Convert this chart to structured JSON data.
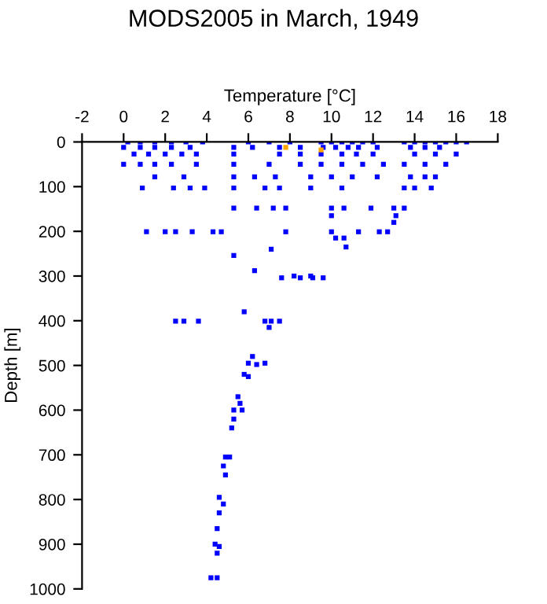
{
  "chart_data": {
    "type": "scatter",
    "title": "MODS2005 in March, 1949",
    "xlabel": "Temperature [°C]",
    "ylabel": "Depth [m]",
    "xlim": [
      -2,
      18
    ],
    "xticks": [
      -2,
      0,
      2,
      4,
      6,
      8,
      10,
      12,
      14,
      16,
      18
    ],
    "ylim": [
      1000,
      0
    ],
    "yticks": [
      0,
      100,
      200,
      300,
      400,
      500,
      600,
      700,
      800,
      900,
      1000
    ],
    "grid": false,
    "legend": false,
    "marker": "square",
    "series": [
      {
        "color": "#0000ff",
        "x": [
          0.2,
          0.8,
          1.5,
          2.3,
          3,
          3.8,
          6,
          7,
          8,
          9.5,
          10,
          10.5,
          11,
          11.5,
          12,
          13.5,
          14,
          14.5,
          15,
          15.5,
          16,
          16.5,
          0,
          0.8,
          1.5,
          2.3,
          3.2,
          5.3,
          6.2,
          7.5,
          8.5,
          9.6,
          10.2,
          10.8,
          11.3,
          12.2,
          13.8,
          14.5,
          15.2,
          0.5,
          1.2,
          2,
          2.8,
          3.5,
          5.3,
          7.5,
          8.5,
          9.5,
          10.5,
          11.2,
          12,
          14,
          15,
          16,
          0,
          0.8,
          1.5,
          2.3,
          3.5,
          5.3,
          7,
          8.5,
          9.5,
          10.5,
          11.5,
          12.5,
          13.5,
          14.5,
          15.5,
          1.5,
          2.9,
          5.3,
          6.3,
          7.3,
          9,
          10,
          11,
          12.2,
          13.8,
          14.5,
          15,
          0.9,
          2.4,
          3.2,
          3.9,
          5.3,
          6.8,
          7.5,
          9,
          10.5,
          13.5,
          14,
          14.8,
          5.3,
          6.4,
          7.2,
          7.8,
          10,
          10.6,
          11.9,
          13,
          13.5,
          10,
          13.1,
          13,
          1.1,
          2,
          2.5,
          3.3,
          4.3,
          4.7,
          7.8,
          10,
          11.3,
          12.3,
          12.7,
          10.2,
          10.6,
          10.7,
          7.1,
          5.3,
          6.3,
          7.6,
          8.5,
          9.1,
          9.6,
          8.2,
          9,
          2.5,
          2.9,
          3.6,
          6.8,
          7.1,
          7.5,
          5.8,
          7,
          6.2,
          6,
          6.4,
          5.8,
          6,
          6.8,
          5.5,
          5.6,
          5.3,
          5.7,
          5.3,
          5.2,
          4.9,
          5.1,
          4.8,
          4.9,
          4.6,
          4.8,
          4.6,
          4.5,
          4.4,
          4.6,
          4.5,
          4.2,
          4.5
        ],
        "values": [
          0,
          0,
          0,
          0,
          0,
          0,
          0,
          0,
          0,
          0,
          0,
          0,
          0,
          0,
          0,
          0,
          0,
          0,
          0,
          0,
          0,
          0,
          12,
          12,
          12,
          12,
          12,
          12,
          12,
          12,
          12,
          12,
          12,
          12,
          12,
          12,
          12,
          12,
          12,
          27,
          27,
          27,
          27,
          27,
          27,
          27,
          27,
          27,
          27,
          27,
          27,
          27,
          27,
          27,
          50,
          50,
          50,
          50,
          50,
          50,
          50,
          50,
          50,
          50,
          50,
          50,
          50,
          50,
          50,
          78,
          78,
          78,
          78,
          78,
          78,
          78,
          78,
          78,
          78,
          78,
          78,
          103,
          103,
          103,
          103,
          103,
          103,
          103,
          103,
          103,
          103,
          103,
          103,
          148,
          148,
          148,
          148,
          148,
          148,
          148,
          148,
          148,
          165,
          165,
          180,
          201,
          201,
          201,
          201,
          201,
          201,
          201,
          201,
          201,
          201,
          201,
          215,
          215,
          235,
          240,
          254,
          288,
          304,
          304,
          304,
          304,
          300,
          300,
          401,
          401,
          401,
          401,
          401,
          401,
          380,
          415,
          480,
          495,
          498,
          520,
          525,
          495,
          570,
          585,
          600,
          600,
          620,
          640,
          705,
          705,
          725,
          745,
          795,
          810,
          830,
          865,
          900,
          905,
          920,
          975,
          975
        ]
      },
      {
        "color": "#ffa500",
        "x": [
          7.8,
          9.5
        ],
        "values": [
          12,
          18
        ]
      }
    ]
  }
}
